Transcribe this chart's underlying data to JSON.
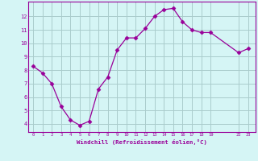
{
  "x": [
    0,
    1,
    2,
    3,
    4,
    5,
    6,
    7,
    8,
    9,
    10,
    11,
    12,
    13,
    14,
    15,
    16,
    17,
    18,
    19,
    22,
    23
  ],
  "y": [
    8.3,
    7.8,
    7.0,
    5.3,
    4.3,
    3.9,
    4.2,
    6.6,
    7.5,
    9.5,
    10.4,
    10.4,
    11.1,
    12.0,
    12.5,
    12.6,
    11.6,
    11.0,
    10.8,
    10.8,
    9.3,
    9.6
  ],
  "line_color": "#990099",
  "marker": "D",
  "marker_size": 2.5,
  "background_color": "#d5f5f5",
  "grid_color": "#aacccc",
  "axis_color": "#990099",
  "tick_color": "#990099",
  "xlabel": "Windchill (Refroidissement éolien,°C)",
  "xticks": [
    0,
    1,
    2,
    3,
    4,
    5,
    6,
    7,
    8,
    9,
    10,
    11,
    12,
    13,
    14,
    15,
    16,
    17,
    18,
    19,
    22,
    23
  ],
  "yticks": [
    4,
    5,
    6,
    7,
    8,
    9,
    10,
    11,
    12
  ],
  "ylim": [
    3.4,
    13.1
  ],
  "xlim": [
    -0.5,
    23.8
  ]
}
